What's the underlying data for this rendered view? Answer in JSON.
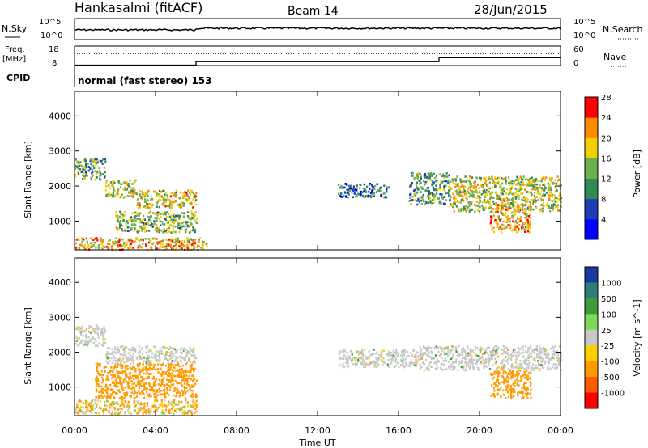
{
  "header": {
    "station": "Hankasalmi (fitACF)",
    "beam": "Beam 14",
    "date": "28/Jun/2015"
  },
  "nsky_panel": {
    "left_label": "N.Sky",
    "left_ticks": [
      "10^5",
      "10^0"
    ],
    "right_ticks": [
      "10^5",
      "10^0"
    ],
    "right_label": "N.Search",
    "right_legend_style": "dotted"
  },
  "freq_panel": {
    "left_label_lines": [
      "Freq.",
      "[MHz]"
    ],
    "left_ticks": [
      "18",
      "8"
    ],
    "right_ticks": [
      "60",
      "0"
    ],
    "right_label": "Nave",
    "right_legend_style": "dotted"
  },
  "cpid": {
    "label": "CPID",
    "text": "normal (fast stereo) 153"
  },
  "x_axis": {
    "tick_labels": [
      "00:00",
      "04:00",
      "08:00",
      "12:00",
      "16:00",
      "20:00",
      "00:00"
    ],
    "label": "Time UT",
    "range_hours": [
      0,
      24
    ]
  },
  "range_axis": {
    "label": "Slant Range [km]",
    "tick_labels": [
      "1000",
      "2000",
      "3000",
      "4000"
    ],
    "range_km": [
      180,
      4700
    ]
  },
  "power_colorbar": {
    "label": "Power [dB]",
    "tick_labels": [
      "4",
      "8",
      "12",
      "16",
      "20",
      "24",
      "28"
    ],
    "colors": [
      "#0000ff",
      "#1e3cb4",
      "#2e8b57",
      "#6ab04c",
      "#f0d000",
      "#ff8c00",
      "#ff0000"
    ]
  },
  "velocity_colorbar": {
    "label": "Velocity [m s^-1]",
    "tick_labels": [
      "1000",
      "500",
      "100",
      "25",
      "-25",
      "-100",
      "-500",
      "-1000"
    ],
    "colors": [
      "#1a3a9e",
      "#2e7d7a",
      "#3c9b3c",
      "#7ed957",
      "#c8c8c8",
      "#ffd000",
      "#ff9a00",
      "#ff5a00",
      "#ff0000"
    ]
  },
  "chart_data": {
    "type": "heatmap",
    "title": "Hankasalmi (fitACF)",
    "xlabel": "Time UT",
    "ylabel": "Slant Range [km]",
    "xlim_hours": [
      0,
      24
    ],
    "ylim_km": [
      180,
      4700
    ],
    "frequency_mhz": [
      {
        "t_start": 0,
        "t_end": 6,
        "freq": 8.2
      },
      {
        "t_start": 6,
        "t_end": 18,
        "freq": 10.0
      },
      {
        "t_start": 18,
        "t_end": 24,
        "freq": 12.0
      }
    ],
    "power_echo_regions": [
      {
        "t_start": 0.0,
        "t_end": 1.5,
        "r_start": 2200,
        "r_end": 2800,
        "level_db": 14
      },
      {
        "t_start": 1.5,
        "t_end": 3.0,
        "r_start": 1700,
        "r_end": 2200,
        "level_db": 18
      },
      {
        "t_start": 3.0,
        "t_end": 6.0,
        "r_start": 1400,
        "r_end": 1900,
        "level_db": 20
      },
      {
        "t_start": 2.0,
        "t_end": 6.0,
        "r_start": 700,
        "r_end": 1300,
        "level_db": 16
      },
      {
        "t_start": 0.0,
        "t_end": 6.5,
        "r_start": 200,
        "r_end": 550,
        "level_db": 22
      },
      {
        "t_start": 13.0,
        "t_end": 15.5,
        "r_start": 1700,
        "r_end": 2100,
        "level_db": 10
      },
      {
        "t_start": 16.5,
        "t_end": 18.5,
        "r_start": 1500,
        "r_end": 2400,
        "level_db": 14
      },
      {
        "t_start": 18.5,
        "t_end": 24.0,
        "r_start": 1300,
        "r_end": 2300,
        "level_db": 18
      },
      {
        "t_start": 20.5,
        "t_end": 22.5,
        "r_start": 700,
        "r_end": 1500,
        "level_db": 22
      }
    ],
    "velocity_echo_regions": [
      {
        "t_start": 0.0,
        "t_end": 1.5,
        "r_start": 2200,
        "r_end": 2800,
        "vel": 0
      },
      {
        "t_start": 1.5,
        "t_end": 6.0,
        "r_start": 1700,
        "r_end": 2200,
        "vel": 0
      },
      {
        "t_start": 1.0,
        "t_end": 6.0,
        "r_start": 700,
        "r_end": 1700,
        "vel": -300
      },
      {
        "t_start": 0.0,
        "t_end": 6.0,
        "r_start": 250,
        "r_end": 650,
        "vel": -100
      },
      {
        "t_start": 13.0,
        "t_end": 17.0,
        "r_start": 1600,
        "r_end": 2100,
        "vel": 0
      },
      {
        "t_start": 17.0,
        "t_end": 24.0,
        "r_start": 1500,
        "r_end": 2200,
        "vel": 0
      },
      {
        "t_start": 20.5,
        "t_end": 22.5,
        "r_start": 700,
        "r_end": 1500,
        "vel": -300
      }
    ]
  }
}
